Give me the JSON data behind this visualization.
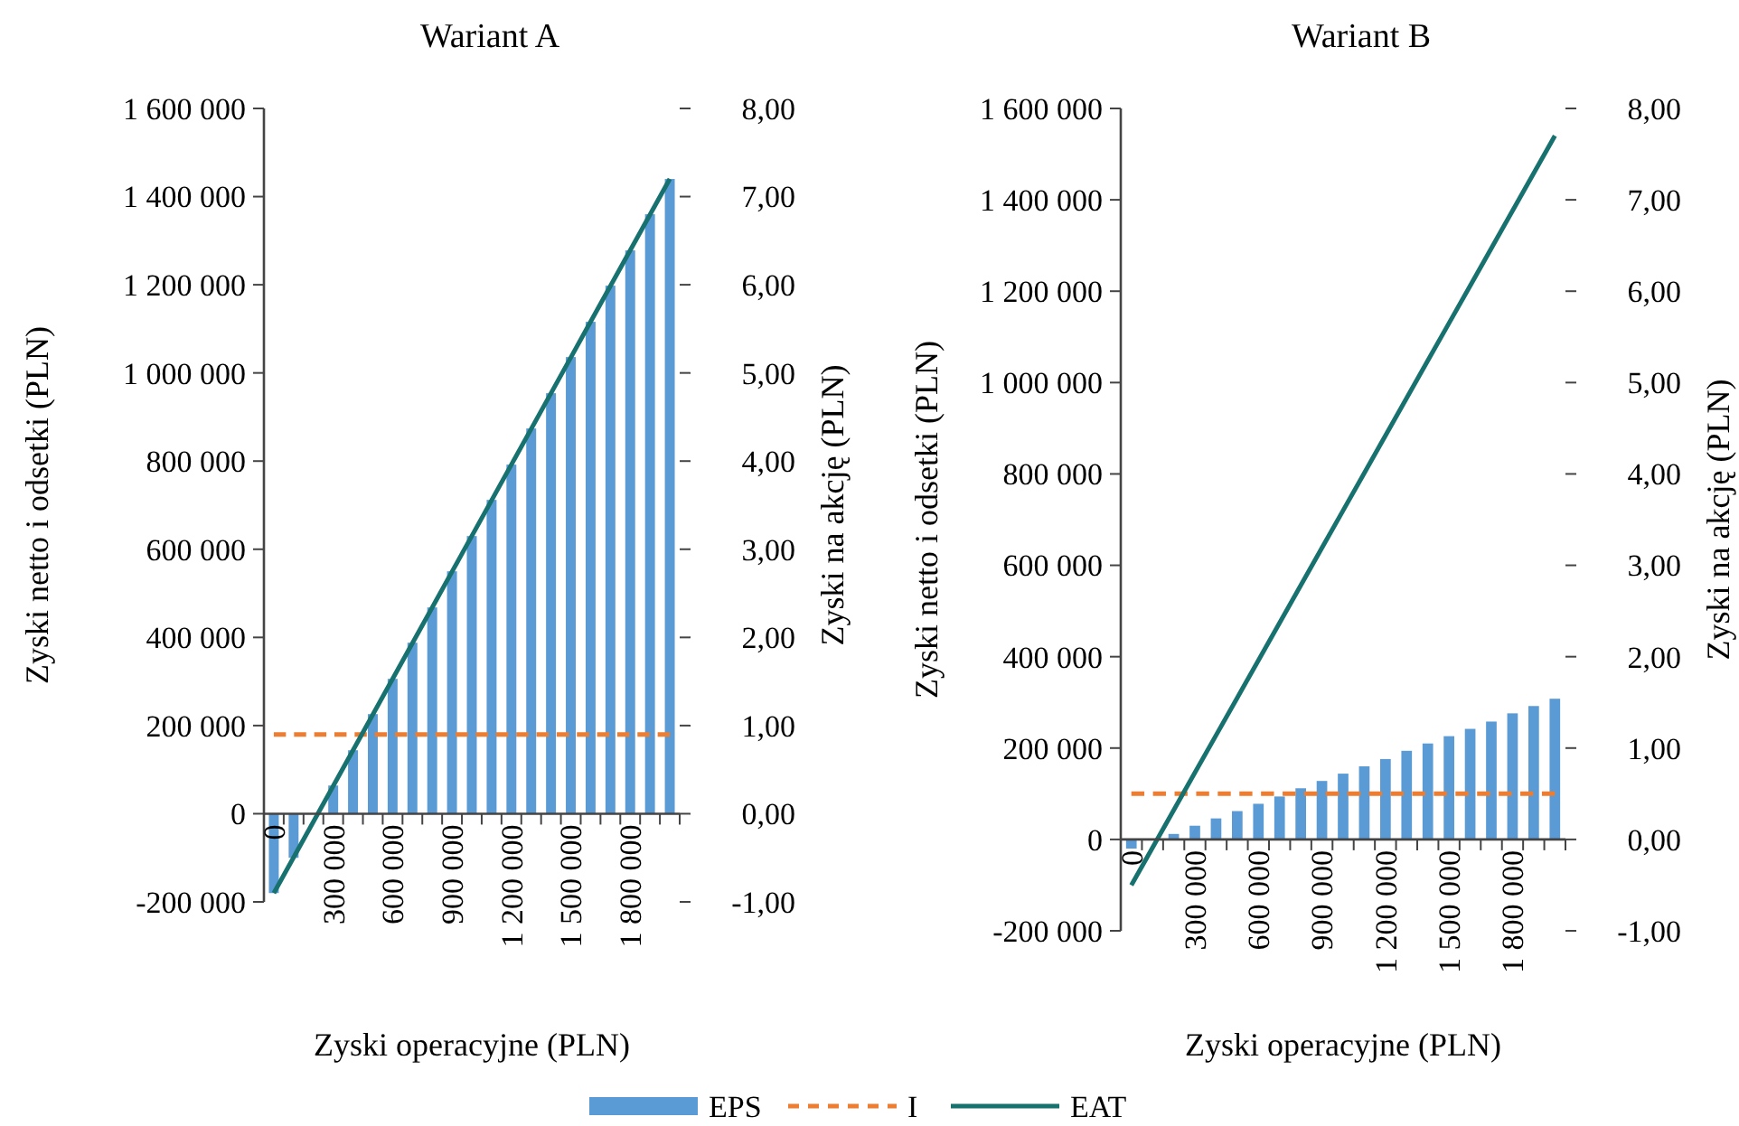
{
  "chart_data": [
    {
      "type": "bar",
      "title": "Wariant A",
      "xlabel": "Zyski operacyjne (PLN)",
      "ylabel": "Zyski netto i odsetki (PLN)",
      "y2label": "Zyski na akcję (PLN)",
      "categories": [
        "0",
        null,
        null,
        "300 000",
        null,
        null,
        "600 000",
        null,
        null,
        "900 000",
        null,
        null,
        "1 200 000",
        null,
        null,
        "1 500 000",
        null,
        null,
        "1 800 000",
        null,
        null
      ],
      "series": [
        {
          "name": "EPS",
          "axis": "y2",
          "color": "#5b9bd5",
          "values": [
            -0.9,
            -0.5,
            null,
            0.32,
            0.72,
            1.13,
            1.53,
            1.94,
            2.34,
            2.75,
            3.15,
            3.56,
            3.96,
            4.37,
            4.77,
            5.18,
            5.58,
            5.99,
            6.39,
            6.8,
            7.2
          ]
        },
        {
          "name": "I",
          "type": "line",
          "line_style": "dashed",
          "color": "#ed7d31",
          "values": [
            180000,
            180000,
            180000,
            180000,
            180000,
            180000,
            180000,
            180000,
            180000,
            180000,
            180000,
            180000,
            180000,
            180000,
            180000,
            180000,
            180000,
            180000,
            180000,
            180000,
            180000
          ]
        },
        {
          "name": "EAT",
          "type": "line",
          "line_style": "solid",
          "color": "#17716f",
          "values": [
            -180000,
            -99000,
            -18000,
            63000,
            144000,
            225000,
            306000,
            387000,
            468000,
            549000,
            630000,
            711000,
            792000,
            873000,
            954000,
            1035000,
            1116000,
            1197000,
            1278000,
            1359000,
            1440000
          ]
        }
      ],
      "ylim": [
        -200000,
        1600000
      ],
      "yticks": [
        {
          "value": -200000,
          "label": "-200 000"
        },
        0,
        {
          "value": 200000,
          "label": "200 000"
        },
        {
          "value": 400000,
          "label": "400 000"
        },
        {
          "value": 600000,
          "label": "600 000"
        },
        {
          "value": 800000,
          "label": "800 000"
        },
        {
          "value": 1000000,
          "label": "1 000 000"
        },
        {
          "value": 1200000,
          "label": "1 200 000"
        },
        {
          "value": 1400000,
          "label": "1 400 000"
        },
        {
          "value": 1600000,
          "label": "1 600 000"
        }
      ],
      "y2lim": [
        -1,
        8
      ],
      "y2ticks": [
        {
          "value": -1,
          "label": "-1,00"
        },
        {
          "value": 0,
          "label": "0,00"
        },
        {
          "value": 1,
          "label": "1,00"
        },
        {
          "value": 2,
          "label": "2,00"
        },
        {
          "value": 3,
          "label": "3,00"
        },
        {
          "value": 4,
          "label": "4,00"
        },
        {
          "value": 5,
          "label": "5,00"
        },
        {
          "value": 6,
          "label": "6,00"
        },
        {
          "value": 7,
          "label": "7,00"
        },
        {
          "value": 8,
          "label": "8,00"
        }
      ],
      "legend": "bottom",
      "grid": false
    },
    {
      "type": "bar",
      "title": "Wariant B",
      "xlabel": "Zyski operacyjne (PLN)",
      "ylabel": "Zyski netto i odsetki (PLN)",
      "y2label": "Zyski na akcję (PLN)",
      "categories": [
        "0",
        null,
        null,
        "300 000",
        null,
        null,
        "600 000",
        null,
        null,
        "900 000",
        null,
        null,
        "1 200 000",
        null,
        null,
        "1 500 000",
        null,
        null,
        "1 800 000",
        null,
        null
      ],
      "series": [
        {
          "axis": "y2",
          "color": "#5b9bd5",
          "values": [
            -0.1,
            null,
            0.06,
            0.15,
            0.23,
            0.31,
            0.39,
            0.47,
            0.56,
            0.64,
            0.72,
            0.8,
            0.88,
            0.97,
            1.05,
            1.13,
            1.21,
            1.29,
            1.38,
            1.46,
            1.54
          ]
        },
        {
          "type": "line",
          "line_style": "dashed",
          "color": "#ed7d31",
          "values": [
            100000,
            100000,
            100000,
            100000,
            100000,
            100000,
            100000,
            100000,
            100000,
            100000,
            100000,
            100000,
            100000,
            100000,
            100000,
            100000,
            100000,
            100000,
            100000,
            100000,
            100000
          ]
        },
        {
          "type": "line",
          "line_style": "solid",
          "color": "#17716f",
          "values": [
            -100000,
            -18000,
            64000,
            146000,
            228000,
            310000,
            392000,
            474000,
            556000,
            638000,
            720000,
            802000,
            884000,
            966000,
            1048000,
            1130000,
            1212000,
            1294000,
            1376000,
            1458000,
            1540000
          ]
        }
      ],
      "ylim": [
        -200000,
        1600000
      ],
      "yticks": [
        {
          "value": -200000,
          "label": "-200 000"
        },
        0,
        {
          "value": 200000,
          "label": "200 000"
        },
        {
          "value": 400000,
          "label": "400 000"
        },
        {
          "value": 600000,
          "label": "600 000"
        },
        {
          "value": 800000,
          "label": "800 000"
        },
        {
          "value": 1000000,
          "label": "1 000 000"
        },
        {
          "value": 1200000,
          "label": "1 200 000"
        },
        {
          "value": 1400000,
          "label": "1 400 000"
        },
        {
          "value": 1600000,
          "label": "1 600 000"
        }
      ],
      "y2lim": [
        -1,
        8
      ],
      "y2ticks": [
        {
          "value": -1,
          "label": "-1,00"
        },
        {
          "value": 0,
          "label": "0,00"
        },
        {
          "value": 1,
          "label": "1,00"
        },
        {
          "value": 2,
          "label": "2,00"
        },
        {
          "value": 3,
          "label": "3,00"
        },
        {
          "value": 4,
          "label": "4,00"
        },
        {
          "value": 5,
          "label": "5,00"
        },
        {
          "value": 6,
          "label": "6,00"
        },
        {
          "value": 7,
          "label": "7,00"
        },
        {
          "value": 8,
          "label": "8,00"
        }
      ],
      "grid": false
    }
  ]
}
